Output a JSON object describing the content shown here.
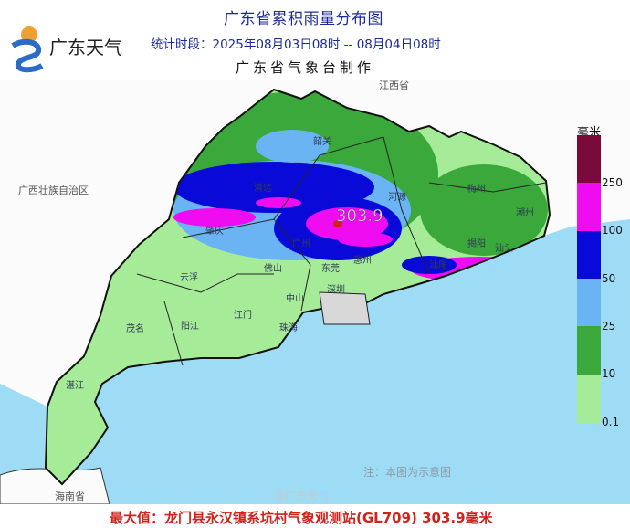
{
  "header": {
    "logo_text": "广东天气",
    "title": "广东省累积雨量分布图",
    "period": "统计时段：2025年08月03日08时  --  08月04日08时",
    "maker": "广东省气象台制作"
  },
  "map": {
    "max_label": "303.9",
    "provinces": [
      "江西省",
      "广西壮族自治区",
      "海南省"
    ],
    "cities": [
      "韶关",
      "清远",
      "河源",
      "肇庆",
      "广州",
      "东莞",
      "惠州",
      "云浮",
      "佛山",
      "深圳",
      "中山",
      "江门",
      "珠海",
      "阳江",
      "茂名",
      "湛江",
      "梅州",
      "潮州",
      "揭阳",
      "汕头",
      "汕尾"
    ],
    "note": "注：本图为示意图"
  },
  "legend": {
    "unit": "毫米",
    "bins": [
      {
        "label": "250",
        "color": "#7a0a3a"
      },
      {
        "label": "100",
        "color": "#f00cf0"
      },
      {
        "label": "50",
        "color": "#0a0ad8"
      },
      {
        "label": "25",
        "color": "#6ab4f4"
      },
      {
        "label": "10",
        "color": "#3aa83a"
      },
      {
        "label": "0.1",
        "color": "#a6ec98"
      }
    ]
  },
  "footer": {
    "max_value": "最大值：龙门县永汉镇系坑村气象观测站(GL709) 303.9毫米",
    "watermark": "@广东天气"
  },
  "colors": {
    "sea": "#9edcf6",
    "title": "#1b2a9c",
    "max_text": "#d0211b"
  }
}
